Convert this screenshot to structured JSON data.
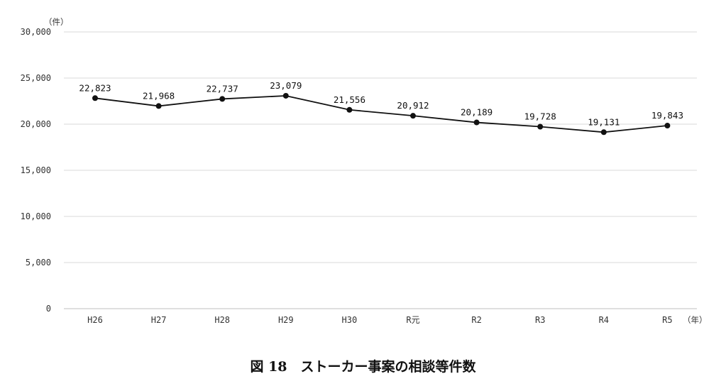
{
  "chart_data": {
    "type": "line",
    "categories": [
      "H26",
      "H27",
      "H28",
      "H29",
      "H30",
      "R元",
      "R2",
      "R3",
      "R4",
      "R5"
    ],
    "values": [
      22823,
      21968,
      22737,
      23079,
      21556,
      20912,
      20189,
      19728,
      19131,
      19843
    ],
    "value_labels": [
      "22,823",
      "21,968",
      "22,737",
      "23,079",
      "21,556",
      "20,912",
      "20,189",
      "19,728",
      "19,131",
      "19,843"
    ],
    "highlight_index": 9,
    "highlight_color": "#e8141c",
    "line_color": "#111111",
    "grid_color": "#d9d9d9",
    "y_unit": "（件）",
    "x_unit": "（年）",
    "ylim": [
      0,
      30000
    ],
    "yticks": [
      0,
      5000,
      10000,
      15000,
      20000,
      25000,
      30000
    ],
    "ytick_labels": [
      "0",
      "5,000",
      "10,000",
      "15,000",
      "20,000",
      "25,000",
      "30,000"
    ],
    "grid": true,
    "legend": "none"
  },
  "caption": {
    "figure_label": "図 18",
    "title": "ストーカー事案の相談等件数"
  }
}
